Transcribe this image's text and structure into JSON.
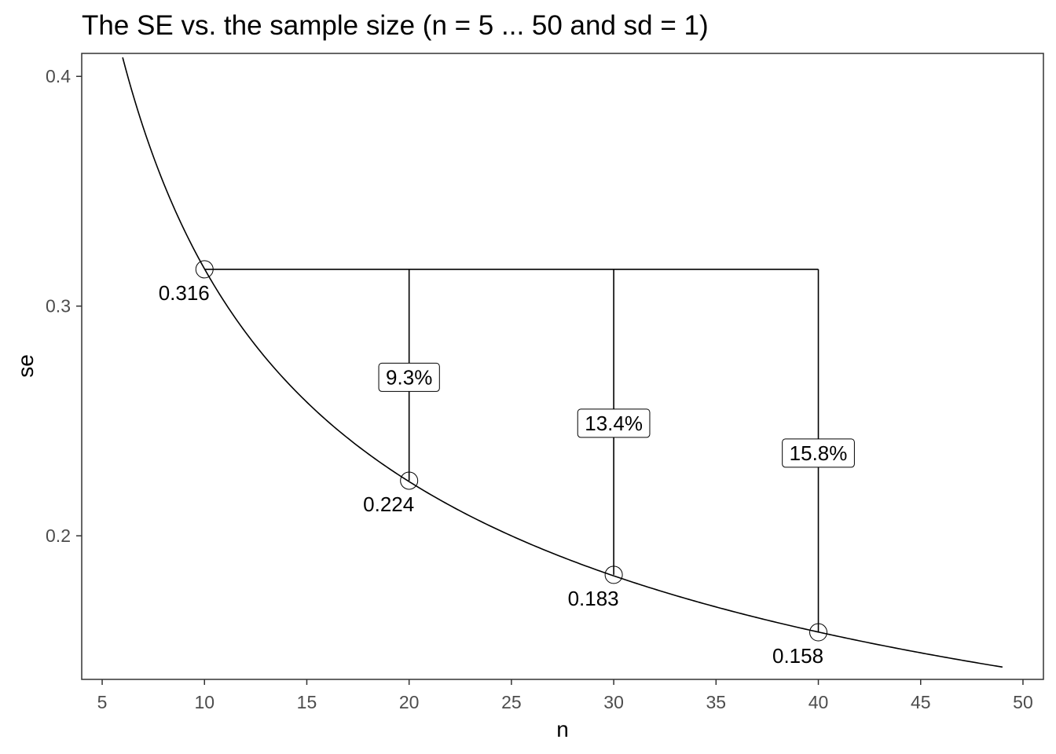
{
  "chart_data": {
    "type": "line",
    "title": "The SE vs. the sample size (n = 5 ... 50 and sd = 1)",
    "xlabel": "n",
    "ylabel": "se",
    "xlim": [
      4,
      51
    ],
    "ylim": [
      0.1375,
      0.41
    ],
    "x_ticks": [
      5,
      10,
      15,
      20,
      25,
      30,
      35,
      40,
      45,
      50
    ],
    "y_ticks": [
      0.2,
      0.3,
      0.4
    ],
    "x_tick_labels": [
      "5",
      "10",
      "15",
      "20",
      "25",
      "30",
      "35",
      "40",
      "45",
      "50"
    ],
    "y_tick_labels": [
      "0.2",
      "0.3",
      "0.4"
    ],
    "curve": {
      "formula": "se = sd / sqrt(n)",
      "sd": 1,
      "x_from": 6,
      "x_to": 49
    },
    "grid": false,
    "reference_line": {
      "y": 0.316,
      "x_from": 10,
      "x_to": 40
    },
    "points": [
      {
        "x": 10,
        "y": 0.316,
        "label": "0.316"
      },
      {
        "x": 20,
        "y": 0.224,
        "label": "0.224"
      },
      {
        "x": 30,
        "y": 0.183,
        "label": "0.183"
      },
      {
        "x": 40,
        "y": 0.158,
        "label": "0.158"
      }
    ],
    "drops": [
      {
        "x": 20,
        "y_top": 0.316,
        "y_bottom": 0.224,
        "label_y": 0.269,
        "label": "9.3%"
      },
      {
        "x": 30,
        "y_top": 0.316,
        "y_bottom": 0.183,
        "label_y": 0.249,
        "label": "13.4%"
      },
      {
        "x": 40,
        "y_top": 0.316,
        "y_bottom": 0.158,
        "label_y": 0.236,
        "label": "15.8%"
      }
    ]
  }
}
